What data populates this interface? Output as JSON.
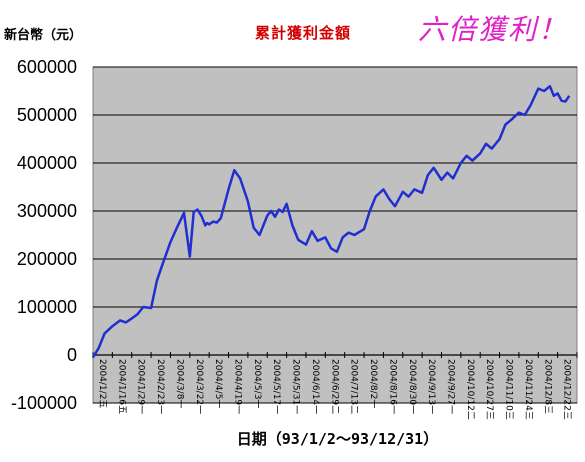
{
  "header": {
    "ylabel": "新台幣（元）",
    "title": "累計獲利金額",
    "slogan": "六倍獲利！"
  },
  "colors": {
    "plot_background": "#c0c0c0",
    "line": "#1f2fd0",
    "title": "#d40000",
    "slogan": "#e020c8"
  },
  "chart_data": {
    "type": "line",
    "title": "累計獲利金額",
    "xlabel": "日期（93/1/2～93/12/31）",
    "ylabel": "新台幣（元）",
    "ylim": [
      -100000,
      600000
    ],
    "yticks": [
      "600000",
      "500000",
      "400000",
      "300000",
      "200000",
      "100000",
      "0",
      "-100000"
    ],
    "ytick_values": [
      600000,
      500000,
      400000,
      300000,
      200000,
      100000,
      0,
      -100000
    ],
    "xticks": [
      "2004/1/2五",
      "2004/1/16五",
      "2004/1/29一",
      "2004/2/23一",
      "2004/3/8一",
      "2004/3/22一",
      "2004/4/5一",
      "2004/4/19一",
      "2004/5/3一",
      "2004/5/17一",
      "2004/5/31一",
      "2004/6/14一",
      "2004/6/29二",
      "2004/7/13二",
      "2004/8/2一",
      "2004/8/16一",
      "2004/8/30一",
      "2004/9/13一",
      "2004/9/27一",
      "2004/10/12二",
      "2004/10/27三",
      "2004/11/10三",
      "2004/11/24三",
      "2004/12/8三",
      "2004/12/22三"
    ],
    "grid": true,
    "series": [
      {
        "x": [
          0,
          0.3,
          0.6,
          1,
          1.4,
          1.7,
          2,
          2.3,
          2.6,
          3,
          3.3,
          3.6,
          4,
          4.3,
          4.7,
          5,
          5.2,
          5.4,
          5.6,
          5.8,
          5.9,
          6,
          6.2,
          6.4,
          6.6,
          7,
          7.3,
          7.6,
          8,
          8.3,
          8.6,
          9,
          9.2,
          9.4,
          9.6,
          9.8,
          10,
          10.3,
          10.6,
          11,
          11.3,
          11.6,
          12,
          12.3,
          12.6,
          12.9,
          13.2,
          13.5,
          14,
          14.3,
          14.6,
          15,
          15.3,
          15.6,
          16,
          16.3,
          16.6,
          17,
          17.3,
          17.6,
          18,
          18.3,
          18.6,
          19,
          19.3,
          19.6,
          20,
          20.3,
          20.6,
          21,
          21.3,
          21.6,
          22,
          22.3,
          22.6,
          23,
          23.3,
          23.6,
          23.8,
          24,
          24.2,
          24.4,
          24.6
        ],
        "values": [
          -5000,
          15000,
          45000,
          60000,
          72000,
          68000,
          76000,
          85000,
          100000,
          98000,
          155000,
          190000,
          235000,
          262000,
          296000,
          205000,
          298000,
          303000,
          290000,
          270000,
          275000,
          272000,
          278000,
          276000,
          285000,
          345000,
          385000,
          368000,
          320000,
          265000,
          250000,
          290000,
          300000,
          288000,
          303000,
          298000,
          315000,
          270000,
          240000,
          230000,
          258000,
          238000,
          245000,
          222000,
          215000,
          245000,
          255000,
          250000,
          262000,
          300000,
          330000,
          345000,
          325000,
          310000,
          340000,
          330000,
          345000,
          338000,
          375000,
          390000,
          365000,
          380000,
          368000,
          400000,
          415000,
          405000,
          420000,
          440000,
          430000,
          450000,
          480000,
          490000,
          505000,
          500000,
          520000,
          555000,
          550000,
          560000,
          540000,
          545000,
          530000,
          528000,
          540000
        ]
      }
    ]
  }
}
